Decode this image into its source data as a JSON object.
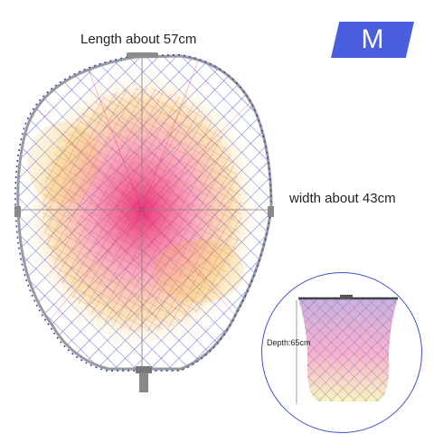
{
  "labels": {
    "length": "Length about 57cm",
    "width": "width about 43cm",
    "size": "M",
    "depth": "Depth:65cm"
  },
  "colors": {
    "badge": "#4a5fe0",
    "rim": "#9a9a9a",
    "mesh_outer": "#3045c8",
    "mesh_inner_warm": "#e8206a",
    "mesh_inner_yellow": "#f2b430"
  },
  "icons": [
    "landing-net-photo",
    "net-depth-photo"
  ]
}
